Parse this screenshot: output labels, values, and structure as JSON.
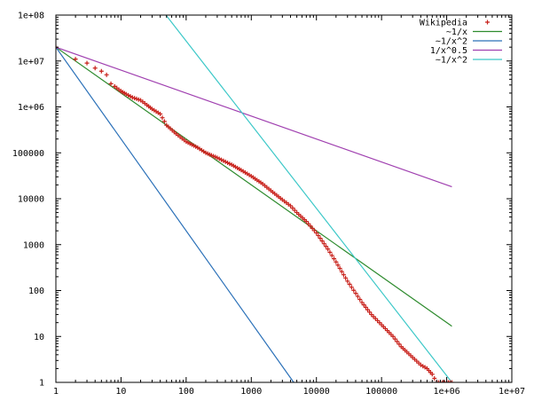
{
  "chart_data": {
    "type": "line",
    "title": "",
    "xlabel": "",
    "ylabel": "",
    "xscale": "log",
    "yscale": "log",
    "xlim": [
      1,
      10000000
    ],
    "ylim": [
      1,
      100000000
    ],
    "x_tick_labels": [
      "1",
      "10",
      "100",
      "1000",
      "10000",
      "100000",
      "1e+06",
      "1e+07"
    ],
    "y_tick_labels": [
      "1",
      "10",
      "100",
      "1000",
      "10000",
      "100000",
      "1e+06",
      "1e+07",
      "1e+08"
    ],
    "grid": false,
    "legend_position": "top-right",
    "series": [
      {
        "name": "Wikipedia",
        "style": "points",
        "color": "#c8201a",
        "x": [
          1,
          2,
          3,
          4,
          5,
          6,
          7,
          8,
          10,
          12,
          15,
          20,
          25,
          30,
          40,
          50,
          70,
          100,
          150,
          200,
          300,
          500,
          700,
          1000,
          1500,
          2000,
          3000,
          4000,
          5000,
          7000,
          10000,
          15000,
          20000,
          30000,
          50000,
          70000,
          100000,
          150000,
          200000,
          300000,
          400000,
          500000,
          600000,
          700000,
          800000,
          1000000,
          1200000
        ],
        "y": [
          20000000,
          11000000,
          9000000,
          7000000,
          6000000,
          5000000,
          3200000,
          2800000,
          2200000,
          1900000,
          1600000,
          1400000,
          1100000,
          900000,
          700000,
          400000,
          260000,
          175000,
          130000,
          100000,
          78000,
          55000,
          42000,
          31000,
          21000,
          15000,
          9500,
          7000,
          5000,
          3200,
          1800,
          800,
          420,
          160,
          55,
          30,
          18,
          10,
          6,
          3.5,
          2.4,
          2,
          1.5,
          1,
          1,
          1,
          1
        ]
      },
      {
        "name": "~1/x",
        "style": "line",
        "color": "#2e8b2e",
        "x": [
          1,
          1200000
        ],
        "y": [
          20000000,
          16.7
        ]
      },
      {
        "name": "~1/x^2",
        "style": "line",
        "color": "#2a70b8",
        "x": [
          1,
          4472
        ],
        "y": [
          20000000,
          1
        ]
      },
      {
        "name": "1/x^0.5",
        "style": "line",
        "color": "#a040b0",
        "x": [
          1,
          1200000
        ],
        "y": [
          20000000,
          18257
        ]
      },
      {
        "name": "~1/x^2",
        "style": "line",
        "color": "#3cc8c8",
        "x": [
          49,
          1200000
        ],
        "y": [
          100000000,
          1
        ]
      }
    ]
  }
}
